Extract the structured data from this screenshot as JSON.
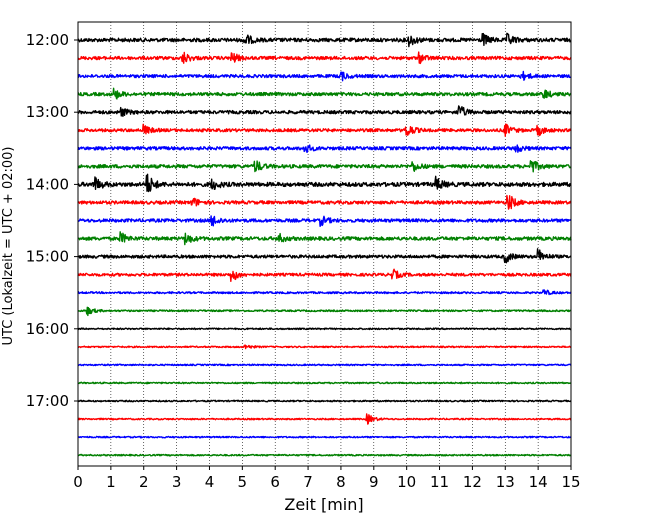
{
  "chart_data": {
    "type": "line",
    "chart_kind": "helicorder",
    "xlabel": "Zeit  [min]",
    "ylabel": "UTC (Lokalzeit = UTC + 02:00)",
    "xlim": [
      0,
      15
    ],
    "x_ticks": [
      0,
      1,
      2,
      3,
      4,
      5,
      6,
      7,
      8,
      9,
      10,
      11,
      12,
      13,
      14,
      15
    ],
    "x_tick_labels": [
      "0",
      "1",
      "2",
      "3",
      "4",
      "5",
      "6",
      "7",
      "8",
      "9",
      "10",
      "11",
      "12",
      "13",
      "14",
      "15"
    ],
    "y_ticks": [
      "12:00",
      "13:00",
      "14:00",
      "15:00",
      "16:00",
      "17:00"
    ],
    "minutes_per_row": 15,
    "grid": "vertical dotted at every minute",
    "row_colors": [
      "#000000",
      "#ff0000",
      "#0000ff",
      "#008000"
    ],
    "series": [
      {
        "start": "12:00",
        "amplitude": 0.9,
        "events": [
          [
            5.1,
            1.2
          ],
          [
            10.1,
            1.2
          ],
          [
            12.3,
            1.4
          ],
          [
            13.1,
            1.1
          ]
        ]
      },
      {
        "start": "12:15",
        "amplitude": 0.8,
        "events": [
          [
            3.2,
            1.3
          ],
          [
            4.7,
            1.1
          ],
          [
            10.4,
            1.0
          ]
        ]
      },
      {
        "start": "12:30",
        "amplitude": 0.75,
        "events": [
          [
            8.0,
            1.0
          ],
          [
            13.5,
            1.0
          ]
        ]
      },
      {
        "start": "12:45",
        "amplitude": 0.8,
        "events": [
          [
            1.1,
            1.2
          ],
          [
            14.2,
            0.9
          ]
        ]
      },
      {
        "start": "13:00",
        "amplitude": 0.8,
        "events": [
          [
            1.3,
            1.0
          ],
          [
            11.6,
            1.5
          ]
        ]
      },
      {
        "start": "13:15",
        "amplitude": 0.75,
        "events": [
          [
            2.0,
            1.1
          ],
          [
            10.0,
            1.6
          ],
          [
            13.0,
            1.3
          ],
          [
            14.0,
            1.1
          ]
        ]
      },
      {
        "start": "13:30",
        "amplitude": 0.8,
        "events": [
          [
            6.9,
            1.0
          ],
          [
            13.3,
            1.0
          ]
        ]
      },
      {
        "start": "13:45",
        "amplitude": 0.85,
        "events": [
          [
            5.4,
            1.3
          ],
          [
            10.2,
            1.0
          ],
          [
            13.8,
            1.5
          ]
        ]
      },
      {
        "start": "14:00",
        "amplitude": 1.0,
        "events": [
          [
            0.5,
            1.6
          ],
          [
            2.1,
            2.4
          ],
          [
            4.1,
            1.1
          ],
          [
            10.9,
            1.4
          ]
        ]
      },
      {
        "start": "14:15",
        "amplitude": 0.8,
        "events": [
          [
            3.5,
            1.0
          ],
          [
            13.1,
            1.8
          ]
        ]
      },
      {
        "start": "14:30",
        "amplitude": 0.8,
        "events": [
          [
            4.1,
            1.2
          ],
          [
            7.4,
            1.0
          ]
        ]
      },
      {
        "start": "14:45",
        "amplitude": 0.85,
        "events": [
          [
            1.3,
            1.2
          ],
          [
            3.3,
            1.1
          ],
          [
            6.1,
            1.0
          ]
        ]
      },
      {
        "start": "15:00",
        "amplitude": 0.75,
        "events": [
          [
            13.0,
            1.3
          ],
          [
            14.0,
            1.7
          ]
        ]
      },
      {
        "start": "15:15",
        "amplitude": 0.7,
        "events": [
          [
            4.7,
            1.4
          ],
          [
            9.6,
            1.0
          ]
        ]
      },
      {
        "start": "15:30",
        "amplitude": 0.45,
        "events": [
          [
            14.2,
            0.6
          ]
        ]
      },
      {
        "start": "15:45",
        "amplitude": 0.4,
        "events": [
          [
            0.3,
            0.9
          ]
        ]
      },
      {
        "start": "16:00",
        "amplitude": 0.35,
        "events": []
      },
      {
        "start": "16:15",
        "amplitude": 0.35,
        "events": [
          [
            5.1,
            0.5
          ]
        ]
      },
      {
        "start": "16:30",
        "amplitude": 0.35,
        "events": []
      },
      {
        "start": "16:45",
        "amplitude": 0.35,
        "events": []
      },
      {
        "start": "17:00",
        "amplitude": 0.35,
        "events": []
      },
      {
        "start": "17:15",
        "amplitude": 0.35,
        "events": [
          [
            8.8,
            1.2
          ]
        ]
      },
      {
        "start": "17:30",
        "amplitude": 0.35,
        "events": []
      },
      {
        "start": "17:45",
        "amplitude": 0.35,
        "events": []
      }
    ]
  }
}
